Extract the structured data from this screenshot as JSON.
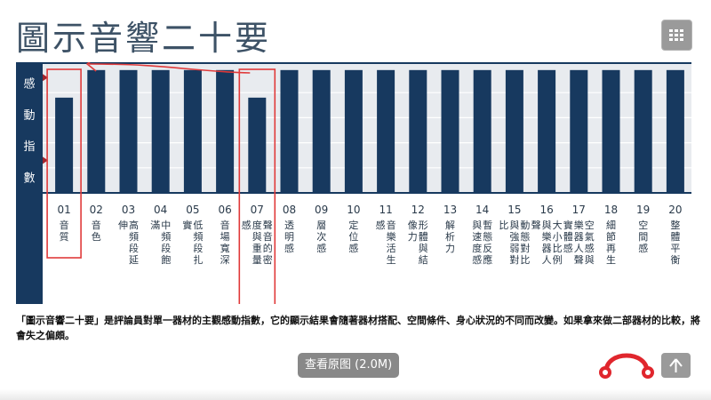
{
  "page": {
    "title": "圖示音響二十要",
    "caption": "「圖示音響二十要」是評論員對單一器材的主觀感動指數，它的顯示結果會隨著器材搭配、空間條件、身心狀況的不同而改變。如果拿來做二部器材的比較，將會失之偏頗。",
    "view_original": "查看原图 (2.0M)"
  },
  "icons": {
    "grid": "grid-icon",
    "arrow_up": "arrow-up-icon",
    "logo": "headphone-logo-icon"
  },
  "colors": {
    "bar": "#17395f",
    "frame": "#17395f",
    "grid_bg": "#e8ebef",
    "marker": "#a0262d",
    "annotation": "#e03a3a",
    "title": "#3d5266"
  },
  "chart_data": {
    "type": "bar",
    "ylabel": "感動指數",
    "ylim": [
      0,
      5
    ],
    "grid": true,
    "categories": [
      {
        "num": "01",
        "label": "音質"
      },
      {
        "num": "02",
        "label": "音色"
      },
      {
        "num": "03",
        "label": "高頻段延伸"
      },
      {
        "num": "04",
        "label": "中頻段飽滿"
      },
      {
        "num": "05",
        "label": "低頻段扎實"
      },
      {
        "num": "06",
        "label": "音場寬深"
      },
      {
        "num": "07",
        "label": "聲音的密度與重量感"
      },
      {
        "num": "08",
        "label": "透明感"
      },
      {
        "num": "09",
        "label": "層次感"
      },
      {
        "num": "10",
        "label": "定位感"
      },
      {
        "num": "11",
        "label": "音樂活生感"
      },
      {
        "num": "12",
        "label": "形體與結像力"
      },
      {
        "num": "13",
        "label": "解析力"
      },
      {
        "num": "14",
        "label": "暫態反應與速度感"
      },
      {
        "num": "15",
        "label": "動態對比與強弱對比"
      },
      {
        "num": "16",
        "label": "大小比例與樂器人聲"
      },
      {
        "num": "17",
        "label": "空氣感與樂器人聲實體感"
      },
      {
        "num": "18",
        "label": "細節再生"
      },
      {
        "num": "19",
        "label": "空間感"
      },
      {
        "num": "20",
        "label": "整體平衡"
      }
    ],
    "values": [
      3.8,
      4.9,
      4.9,
      4.9,
      4.9,
      4.9,
      3.8,
      4.9,
      4.9,
      4.9,
      4.9,
      4.9,
      4.9,
      4.9,
      4.9,
      4.9,
      4.9,
      4.9,
      4.9,
      4.9
    ],
    "highlighted": [
      "01",
      "07"
    ]
  }
}
